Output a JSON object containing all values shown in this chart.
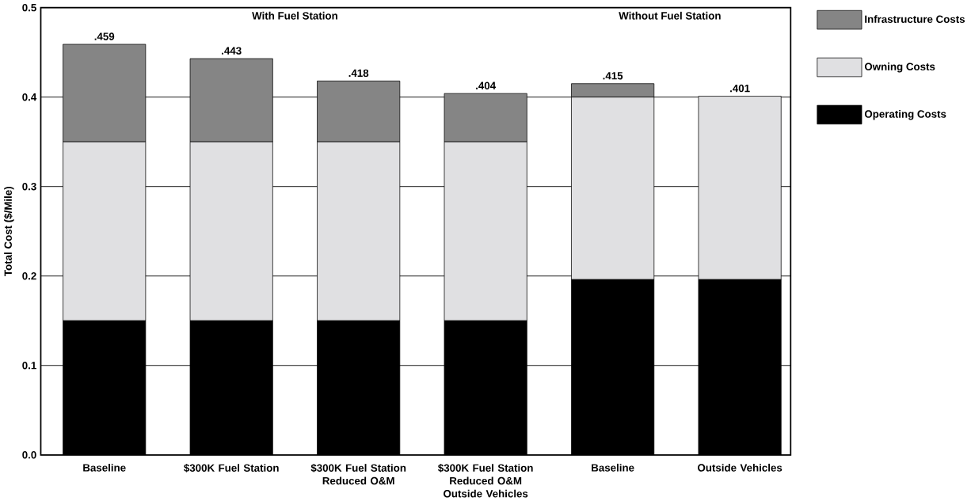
{
  "chart_data": {
    "type": "bar",
    "stacked": true,
    "ylabel": "Total Cost ($/Mile)",
    "categories": [
      "Baseline",
      "$300K Fuel Station",
      "$300K Fuel Station Reduced O&M",
      "$300K Fuel Station Reduced O&M Outside Vehicles",
      "Baseline",
      "Outside Vehicles"
    ],
    "series": [
      {
        "name": "Operating Costs",
        "color": "#000000",
        "values": [
          0.15,
          0.15,
          0.15,
          0.15,
          0.196,
          0.196
        ]
      },
      {
        "name": "Owning Costs",
        "color": "#e0e0e2",
        "values": [
          0.2,
          0.2,
          0.2,
          0.2,
          0.204,
          0.205
        ]
      },
      {
        "name": "Infrastructure Costs",
        "color": "#858585",
        "values": [
          0.109,
          0.093,
          0.068,
          0.054,
          0.015,
          0
        ]
      }
    ],
    "totals": [
      ".459",
      ".443",
      ".418",
      ".404",
      ".415",
      ".401"
    ],
    "ylim": [
      0,
      0.5
    ],
    "yticks": [
      {
        "value": 0,
        "label": "0.0"
      },
      0.1,
      0.2,
      0.3,
      0.4,
      0.5
    ],
    "grid": "y",
    "legend": "right",
    "annotations": [
      "With Fuel Station",
      "Without Fuel Station"
    ]
  }
}
